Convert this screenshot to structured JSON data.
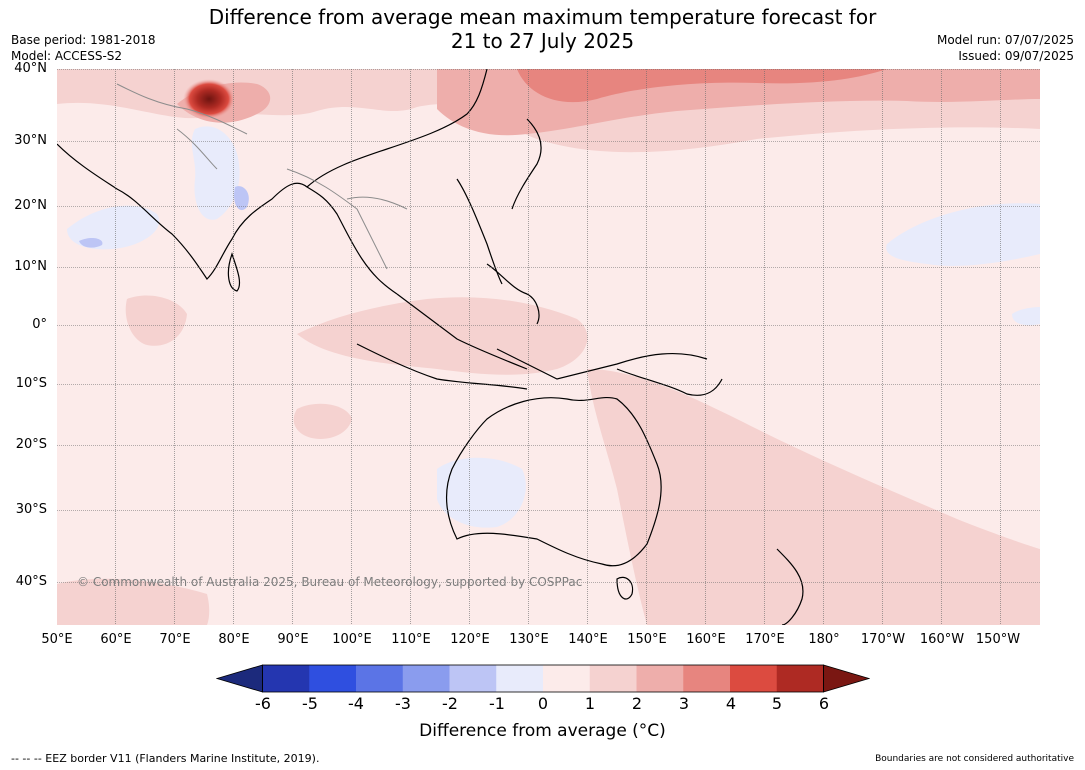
{
  "title": {
    "line1": "Difference from average mean maximum temperature forecast for",
    "line2": "21 to 27 July 2025"
  },
  "meta": {
    "base_period": "Base period: 1981-2018",
    "model": "Model: ACCESS-S2",
    "model_run": "Model run: 07/07/2025",
    "issued": "Issued: 09/07/2025"
  },
  "map": {
    "copyright": "© Commonwealth of Australia 2025, Bureau of Meteorology, supported by COSPPac",
    "lat_labels": [
      "40°N",
      "30°N",
      "20°N",
      "10°N",
      "0°",
      "10°S",
      "20°S",
      "30°S",
      "40°S"
    ],
    "lon_labels": [
      "50°E",
      "60°E",
      "70°E",
      "80°E",
      "90°E",
      "100°E",
      "110°E",
      "120°E",
      "130°E",
      "140°E",
      "150°E",
      "160°E",
      "170°E",
      "180°",
      "170°W",
      "160°W",
      "150°W"
    ]
  },
  "colorbar": {
    "title": "Difference from average (°C)",
    "tick_labels": [
      "-6",
      "-5",
      "-4",
      "-3",
      "-2",
      "-1",
      "0",
      "1",
      "2",
      "3",
      "4",
      "5",
      "6"
    ],
    "colors": [
      "#1c2a7c",
      "#2436b0",
      "#2f4fe0",
      "#5b74e6",
      "#8a9cee",
      "#bdc5f5",
      "#e8ebfb",
      "#fcebea",
      "#f5d2d0",
      "#eeaeab",
      "#e7857f",
      "#dc4b40",
      "#ae2a23",
      "#7a1712"
    ]
  },
  "footer": {
    "eez_note": "--  --  -- EEZ border V11 (Flanders Marine Institute, 2019).",
    "boundaries_note": "Boundaries are not considered authoritative"
  }
}
